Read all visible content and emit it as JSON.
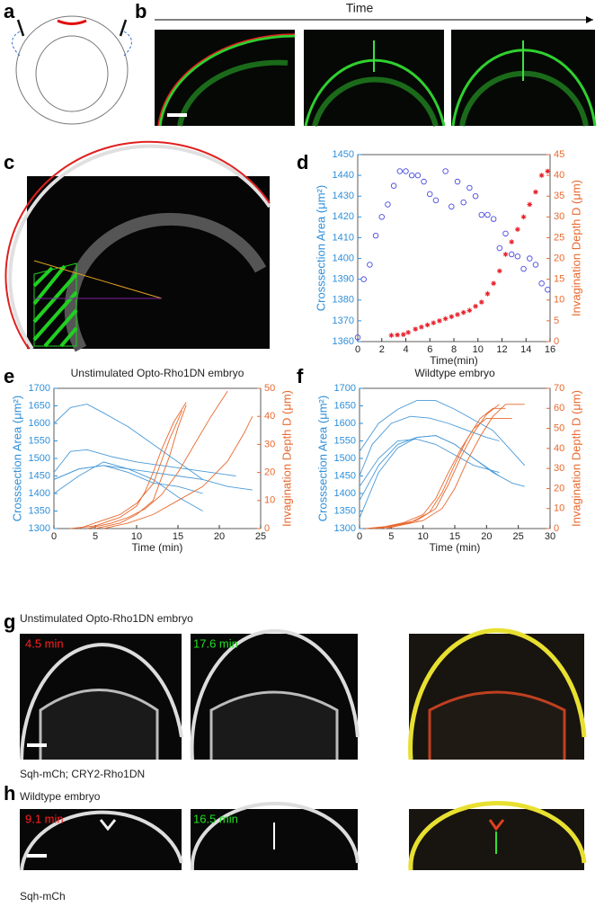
{
  "figure": {
    "panels": [
      "a",
      "b",
      "c",
      "d",
      "e",
      "f",
      "g",
      "h"
    ],
    "b_axis": "Time",
    "g_title": "Unstimulated Opto-Rho1DN embryo",
    "g_times": [
      "4.5 min",
      "17.6 min"
    ],
    "g_genotype": "Sqh-mCh; CRY2-Rho1DN",
    "h_title": "Wildtype embryo",
    "h_times": [
      "9.1 min",
      "16.5 min"
    ],
    "h_genotype": "Sqh-mCh"
  },
  "chart_data": [
    {
      "type": "scatter",
      "xlabel": "Time(min)",
      "ylabel": "Crosssection Area (μm²)",
      "y2label": "Invagination Depth D (μm)",
      "xlim": [
        0,
        16
      ],
      "xticks": [
        0,
        2,
        4,
        6,
        8,
        10,
        12,
        14,
        16
      ],
      "ylim": [
        1360,
        1450
      ],
      "yticks": [
        1360,
        1370,
        1380,
        1390,
        1400,
        1410,
        1420,
        1430,
        1440,
        1450
      ],
      "y2lim": [
        0,
        45
      ],
      "y2ticks": [
        0,
        5,
        10,
        15,
        20,
        25,
        30,
        35,
        40,
        45
      ],
      "ycolor": "#2f8fd8",
      "y2color": "#e8692e",
      "series": [
        {
          "marker": "o",
          "color": "#4a4ae0",
          "x": [
            0,
            0.5,
            1,
            1.5,
            2,
            2.5,
            3,
            3.5,
            4,
            4.5,
            5,
            5.5,
            6,
            6.5,
            7.3,
            7.8,
            8.3,
            8.8,
            9.3,
            9.8,
            10.3,
            10.8,
            11.3,
            11.8,
            12.3,
            12.8,
            13.3,
            13.8,
            14.3,
            14.8,
            15.3,
            15.8
          ],
          "values": [
            1362,
            1390,
            1397,
            1411,
            1420,
            1426,
            1435,
            1442,
            1442,
            1440,
            1440,
            1437,
            1431,
            1428,
            1442,
            1425,
            1437,
            1427,
            1434,
            1430,
            1421,
            1421,
            1419,
            1405,
            1412,
            1402,
            1401,
            1395,
            1400,
            1397,
            1388,
            1385
          ]
        },
        {
          "marker": "*",
          "color": "#e8202a",
          "axis": "y2",
          "x": [
            2.8,
            3.3,
            3.8,
            4.2,
            4.8,
            5.3,
            5.8,
            6.3,
            6.8,
            7.3,
            7.8,
            8.3,
            8.8,
            9.3,
            9.8,
            10.3,
            10.8,
            11.3,
            11.8,
            12.3,
            12.8,
            13.3,
            13.8,
            14.3,
            14.8,
            15.3,
            15.8
          ],
          "values": [
            1.5,
            1.6,
            1.7,
            2.2,
            3,
            3.5,
            4,
            4.5,
            5,
            5.5,
            6,
            6.5,
            7,
            7.5,
            8.5,
            9.5,
            11.5,
            14,
            17,
            21,
            24,
            27,
            30,
            33,
            36,
            40,
            41
          ]
        }
      ]
    },
    {
      "type": "line",
      "title": "Unstimulated Opto-Rho1DN embryo",
      "xlabel": "Time (min)",
      "ylabel": "Crosssection Area (μm²)",
      "y2label": "Invagination Depth D (μm)",
      "xlim": [
        0,
        25
      ],
      "xticks": [
        0,
        5,
        10,
        15,
        20,
        25
      ],
      "ylim": [
        1300,
        1700
      ],
      "yticks": [
        1300,
        1350,
        1400,
        1450,
        1500,
        1550,
        1600,
        1650,
        1700
      ],
      "y2lim": [
        0,
        50
      ],
      "y2ticks": [
        0,
        10,
        20,
        30,
        40,
        50
      ],
      "ycolor": "#2f8fd8",
      "y2color": "#e8692e",
      "series": [
        {
          "color": "#4a9ad8",
          "x": [
            0,
            2,
            4,
            6,
            9,
            12,
            15,
            18
          ],
          "values": [
            1600,
            1645,
            1655,
            1630,
            1590,
            1540,
            1490,
            1440
          ]
        },
        {
          "color": "#4a9ad8",
          "x": [
            0,
            3,
            6,
            9,
            12,
            15,
            18,
            21,
            24
          ],
          "values": [
            1440,
            1470,
            1480,
            1470,
            1460,
            1450,
            1440,
            1420,
            1410
          ]
        },
        {
          "color": "#4a9ad8",
          "x": [
            0,
            2,
            4,
            7,
            10,
            13,
            16,
            19,
            22
          ],
          "values": [
            1460,
            1520,
            1525,
            1505,
            1490,
            1480,
            1470,
            1460,
            1450
          ]
        },
        {
          "color": "#4a9ad8",
          "x": [
            0,
            3,
            6,
            9,
            12,
            15,
            18
          ],
          "values": [
            1400,
            1450,
            1490,
            1470,
            1440,
            1390,
            1350
          ]
        },
        {
          "color": "#4a9ad8",
          "x": [
            0,
            3,
            6,
            9,
            12,
            15,
            18
          ],
          "values": [
            1440,
            1470,
            1480,
            1460,
            1430,
            1420,
            1400
          ]
        },
        {
          "color": "#e8692e",
          "axis": "y2",
          "x": [
            4,
            7,
            9,
            11,
            13,
            15,
            17,
            19,
            21
          ],
          "values": [
            0,
            2,
            4,
            7,
            12,
            20,
            30,
            40,
            49
          ]
        },
        {
          "color": "#e8692e",
          "axis": "y2",
          "x": [
            5,
            8,
            10,
            12,
            13,
            14,
            15,
            16
          ],
          "values": [
            0,
            2,
            5,
            10,
            18,
            26,
            36,
            44
          ]
        },
        {
          "color": "#e8692e",
          "axis": "y2",
          "x": [
            3,
            6,
            8,
            10,
            12,
            13,
            14,
            15.5
          ],
          "values": [
            0,
            3,
            5,
            9,
            16,
            24,
            32,
            42
          ]
        },
        {
          "color": "#e8692e",
          "axis": "y2",
          "x": [
            6,
            9,
            12,
            15,
            18,
            21,
            23,
            24
          ],
          "values": [
            0,
            2,
            5,
            10,
            15,
            24,
            34,
            40
          ]
        },
        {
          "color": "#e8692e",
          "axis": "y2",
          "x": [
            2,
            5,
            8,
            10,
            11,
            12,
            13,
            14.5,
            16
          ],
          "values": [
            0,
            1,
            4,
            8,
            13,
            20,
            28,
            38,
            45
          ]
        }
      ]
    },
    {
      "type": "line",
      "title": "Wildtype embryo",
      "xlabel": "Time (min)",
      "ylabel": "Crosssection Area (μm²)",
      "y2label": "Invagination Depth D (μm)",
      "xlim": [
        0,
        30
      ],
      "xticks": [
        0,
        5,
        10,
        15,
        20,
        25,
        30
      ],
      "ylim": [
        1300,
        1700
      ],
      "yticks": [
        1300,
        1350,
        1400,
        1450,
        1500,
        1550,
        1600,
        1650,
        1700
      ],
      "y2lim": [
        0,
        70
      ],
      "y2ticks": [
        0,
        10,
        20,
        30,
        40,
        50,
        60,
        70
      ],
      "ycolor": "#2f8fd8",
      "y2color": "#e8692e",
      "series": [
        {
          "color": "#4a9ad8",
          "x": [
            0,
            3,
            6,
            9,
            12,
            15,
            18,
            21,
            24,
            26
          ],
          "values": [
            1520,
            1600,
            1640,
            1665,
            1665,
            1640,
            1610,
            1580,
            1520,
            1480
          ]
        },
        {
          "color": "#4a9ad8",
          "x": [
            0,
            3,
            6,
            9,
            12,
            15,
            18,
            21,
            24,
            26
          ],
          "values": [
            1330,
            1460,
            1530,
            1560,
            1565,
            1540,
            1500,
            1460,
            1430,
            1420
          ]
        },
        {
          "color": "#4a9ad8",
          "x": [
            0,
            2,
            5,
            8,
            11,
            14,
            17,
            20,
            22
          ],
          "values": [
            1450,
            1540,
            1600,
            1620,
            1615,
            1600,
            1580,
            1560,
            1550
          ]
        },
        {
          "color": "#4a9ad8",
          "x": [
            0,
            3,
            6,
            9,
            12,
            15,
            18,
            22
          ],
          "values": [
            1380,
            1480,
            1540,
            1560,
            1565,
            1540,
            1500,
            1450
          ]
        },
        {
          "color": "#4a9ad8",
          "x": [
            0,
            3,
            6,
            9,
            12,
            15,
            18,
            22
          ],
          "values": [
            1420,
            1500,
            1550,
            1555,
            1540,
            1510,
            1480,
            1460
          ]
        },
        {
          "color": "#e8692e",
          "axis": "y2",
          "x": [
            2,
            5,
            8,
            11,
            13,
            15,
            17,
            19,
            21,
            23
          ],
          "values": [
            0,
            1,
            3,
            8,
            18,
            32,
            45,
            55,
            60,
            60
          ]
        },
        {
          "color": "#e8692e",
          "axis": "y2",
          "x": [
            3,
            6,
            9,
            12,
            14,
            16,
            18,
            20,
            22
          ],
          "values": [
            0,
            2,
            4,
            10,
            22,
            36,
            48,
            57,
            62
          ]
        },
        {
          "color": "#e8692e",
          "axis": "y2",
          "x": [
            1,
            4,
            7,
            10,
            12,
            14,
            16,
            18,
            20,
            24
          ],
          "values": [
            0,
            1,
            3,
            7,
            15,
            28,
            40,
            50,
            55,
            55
          ]
        },
        {
          "color": "#e8692e",
          "axis": "y2",
          "x": [
            4,
            7,
            10,
            13,
            15,
            17,
            19,
            21,
            23,
            26
          ],
          "values": [
            0,
            2,
            4,
            10,
            20,
            34,
            46,
            56,
            62,
            62
          ]
        }
      ]
    }
  ]
}
